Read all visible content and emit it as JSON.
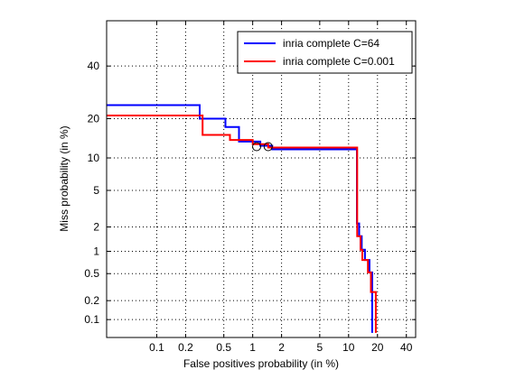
{
  "chart_data": {
    "type": "line",
    "xlabel": "False positives probability (in %)",
    "ylabel": "Miss probability (in %)",
    "xscale": "log",
    "yscale": "probit",
    "xlim": [
      0.03,
      50
    ],
    "ylim": [
      0.05,
      60
    ],
    "xticks": [
      0.1,
      0.2,
      0.5,
      1,
      2,
      5,
      10,
      20,
      40
    ],
    "xticklabels": [
      "0.1",
      "0.2",
      "0.5",
      "1",
      "2",
      "5",
      "10",
      "20",
      "40"
    ],
    "yticks": [
      0.1,
      0.2,
      0.5,
      1,
      2,
      5,
      10,
      20,
      40
    ],
    "yticklabels": [
      "0.1",
      "0.2",
      "0.5",
      "1",
      "2",
      "5",
      "10",
      "20",
      "40"
    ],
    "grid": true,
    "legend_position": "top-right",
    "series": [
      {
        "name": "inria complete C=64",
        "color": "#0000ff",
        "points": [
          [
            0.03,
            24.5
          ],
          [
            0.28,
            24.5
          ],
          [
            0.28,
            20.0
          ],
          [
            0.52,
            20.0
          ],
          [
            0.52,
            17.5
          ],
          [
            0.72,
            17.5
          ],
          [
            0.72,
            13.6
          ],
          [
            1.2,
            13.6
          ],
          [
            1.2,
            12.6
          ],
          [
            1.6,
            12.6
          ],
          [
            1.6,
            11.8
          ],
          [
            12.2,
            11.8
          ],
          [
            12.2,
            2.2
          ],
          [
            12.9,
            2.2
          ],
          [
            12.9,
            1.55
          ],
          [
            13.7,
            1.55
          ],
          [
            13.7,
            1.05
          ],
          [
            14.8,
            1.05
          ],
          [
            14.8,
            0.77
          ],
          [
            16.5,
            0.77
          ],
          [
            16.5,
            0.52
          ],
          [
            17.6,
            0.52
          ],
          [
            17.6,
            0.06
          ]
        ]
      },
      {
        "name": "inria complete C=0.001",
        "color": "#ff0000",
        "points": [
          [
            0.03,
            21.0
          ],
          [
            0.3,
            21.0
          ],
          [
            0.3,
            15.3
          ],
          [
            0.58,
            15.3
          ],
          [
            0.58,
            14.0
          ],
          [
            1.0,
            14.0
          ],
          [
            1.0,
            13.0
          ],
          [
            1.45,
            13.0
          ],
          [
            1.45,
            12.2
          ],
          [
            12.3,
            12.2
          ],
          [
            12.3,
            1.55
          ],
          [
            13.3,
            1.55
          ],
          [
            13.3,
            1.05
          ],
          [
            13.9,
            1.05
          ],
          [
            13.9,
            0.77
          ],
          [
            15.9,
            0.77
          ],
          [
            15.9,
            0.52
          ],
          [
            17.1,
            0.52
          ],
          [
            17.1,
            0.27
          ],
          [
            19.2,
            0.27
          ],
          [
            19.2,
            0.06
          ]
        ]
      }
    ],
    "markers": [
      {
        "series": "inria complete C=64",
        "x": 1.1,
        "y": 12.4,
        "shape": "circle"
      },
      {
        "series": "inria complete C=0.001",
        "x": 1.45,
        "y": 12.4,
        "shape": "circle"
      }
    ]
  }
}
